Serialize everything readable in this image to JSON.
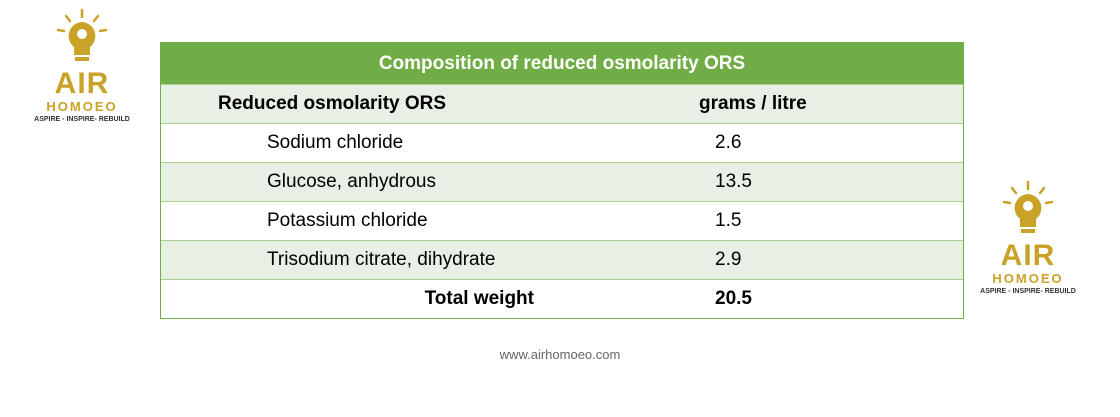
{
  "logo": {
    "brand": "AIR",
    "name": "HOMOEO",
    "tagline": "ASPIRE - INSPIRE- REBUILD"
  },
  "table": {
    "title": "Composition of reduced osmolarity ORS",
    "header": [
      "Reduced osmolarity ORS",
      "grams / litre"
    ],
    "rows": [
      [
        "Sodium chloride",
        "2.6"
      ],
      [
        "Glucose, anhydrous",
        "13.5"
      ],
      [
        "Potassium chloride",
        "1.5"
      ],
      [
        "Trisodium citrate, dihydrate",
        "2.9"
      ]
    ],
    "total": [
      "Total weight",
      "20.5"
    ]
  },
  "footer": "www.airhomoeo.com"
}
